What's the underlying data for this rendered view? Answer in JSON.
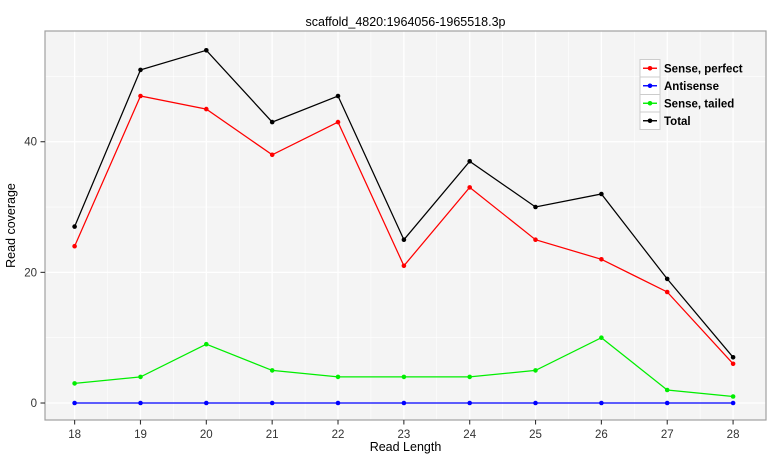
{
  "chart_data": {
    "type": "line",
    "title": "scaffold_4820:1964056-1965518.3p",
    "xlabel": "Read Length",
    "ylabel": "Read coverage",
    "x": [
      18,
      19,
      20,
      21,
      22,
      23,
      24,
      25,
      26,
      27,
      28
    ],
    "series": [
      {
        "name": "Sense, perfect",
        "color": "#ff0000",
        "values": [
          24,
          47,
          45,
          38,
          43,
          21,
          33,
          25,
          22,
          17,
          6
        ]
      },
      {
        "name": "Antisense",
        "color": "#0000ff",
        "values": [
          0,
          0,
          0,
          0,
          0,
          0,
          0,
          0,
          0,
          0,
          0
        ]
      },
      {
        "name": "Sense, tailed",
        "color": "#00ee00",
        "values": [
          3,
          4,
          9,
          5,
          4,
          4,
          4,
          5,
          10,
          2,
          1
        ]
      },
      {
        "name": "Total",
        "color": "#000000",
        "values": [
          27,
          51,
          54,
          43,
          47,
          25,
          37,
          30,
          32,
          19,
          7
        ]
      }
    ],
    "x_ticks": [
      18,
      19,
      20,
      21,
      22,
      23,
      24,
      25,
      26,
      27,
      28
    ],
    "y_ticks": [
      0,
      20,
      40
    ],
    "y_minor_ticks": [
      10,
      30,
      50
    ],
    "x_minor_ticks": [
      18.5,
      19.5,
      20.5,
      21.5,
      22.5,
      23.5,
      24.5,
      25.5,
      26.5,
      27.5
    ],
    "xlim": [
      17.55,
      28.5
    ],
    "ylim": [
      -2.6,
      56.95
    ],
    "grid": true,
    "legend_position": "top-right-inside",
    "panel_bg": "#f4f4f4",
    "grid_color": "#ffffff",
    "border_color": "#a0a0a0",
    "tick_color": "#333333",
    "legend_key_bg": "#ffffff",
    "legend_key_border": "#cccccc"
  }
}
